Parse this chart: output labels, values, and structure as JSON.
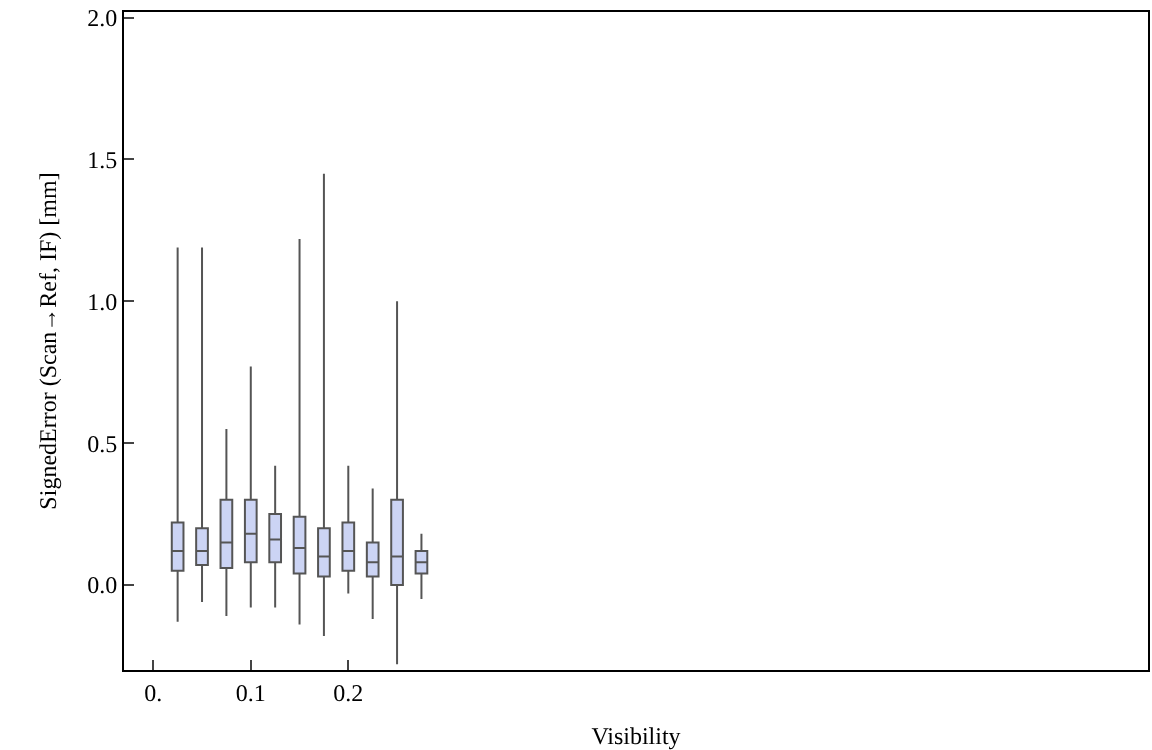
{
  "chart_data": {
    "type": "box",
    "xlabel": "Visibility",
    "ylabel": "SignedError (Scan→Ref, IF) [mm]",
    "x": [
      0.025,
      0.05,
      0.075,
      0.1,
      0.125,
      0.15,
      0.175,
      0.2,
      0.225,
      0.25,
      0.275
    ],
    "color": "#ccd4f4",
    "boxes": [
      {
        "low": -0.13,
        "q1": 0.05,
        "median": 0.12,
        "q3": 0.22,
        "high": 1.19
      },
      {
        "low": -0.06,
        "q1": 0.07,
        "median": 0.12,
        "q3": 0.2,
        "high": 1.19
      },
      {
        "low": -0.11,
        "q1": 0.06,
        "median": 0.15,
        "q3": 0.3,
        "high": 0.55
      },
      {
        "low": -0.08,
        "q1": 0.08,
        "median": 0.18,
        "q3": 0.3,
        "high": 0.77
      },
      {
        "low": -0.08,
        "q1": 0.08,
        "median": 0.16,
        "q3": 0.25,
        "high": 0.42
      },
      {
        "low": -0.14,
        "q1": 0.04,
        "median": 0.13,
        "q3": 0.24,
        "high": 1.22
      },
      {
        "low": -0.18,
        "q1": 0.03,
        "median": 0.1,
        "q3": 0.2,
        "high": 1.45
      },
      {
        "low": -0.03,
        "q1": 0.05,
        "median": 0.12,
        "q3": 0.22,
        "high": 0.42
      },
      {
        "low": -0.12,
        "q1": 0.03,
        "median": 0.08,
        "q3": 0.15,
        "high": 0.34
      },
      {
        "low": -0.28,
        "q1": 0.0,
        "median": 0.1,
        "q3": 0.3,
        "high": 1.0
      },
      {
        "low": -0.05,
        "q1": 0.04,
        "median": 0.08,
        "q3": 0.12,
        "high": 0.18
      }
    ],
    "xlim": [
      -0.03,
      1.02
    ],
    "xticks": [
      {
        "value": 0,
        "label": "0."
      },
      0.1,
      0.2
    ],
    "ylim": [
      -0.3,
      2.02
    ],
    "yticks": [
      {
        "value": 0,
        "label": "0.0"
      },
      {
        "value": 0.5,
        "label": "0.5"
      },
      {
        "value": 1,
        "label": "1.0"
      },
      {
        "value": 1.5,
        "label": "1.5"
      },
      {
        "value": 2,
        "label": "2.0"
      }
    ],
    "grid": false
  }
}
